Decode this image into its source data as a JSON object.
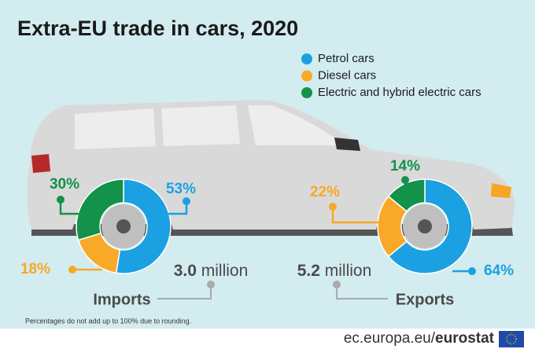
{
  "title": "Extra-EU trade in cars, 2020",
  "note": "Percentages do not add up to 100% due to rounding.",
  "footer": {
    "site": "ec.europa.eu/",
    "brand": "eurostat"
  },
  "chart_data": [
    {
      "type": "pie",
      "donut": true,
      "title": "Imports",
      "total": "3.0",
      "total_unit": "million",
      "categories": [
        "Petrol cars",
        "Diesel cars",
        "Electric and hybrid electric cars"
      ],
      "colors": [
        "#1ba1e2",
        "#f8a928",
        "#12924a"
      ],
      "values": [
        53,
        18,
        30
      ],
      "value_labels": [
        "53%",
        "18%",
        "30%"
      ]
    },
    {
      "type": "pie",
      "donut": true,
      "title": "Exports",
      "total": "5.2",
      "total_unit": "million",
      "categories": [
        "Petrol cars",
        "Diesel cars",
        "Electric and hybrid electric cars"
      ],
      "colors": [
        "#1ba1e2",
        "#f8a928",
        "#12924a"
      ],
      "values": [
        64,
        22,
        14
      ],
      "value_labels": [
        "64%",
        "22%",
        "14%"
      ]
    }
  ]
}
